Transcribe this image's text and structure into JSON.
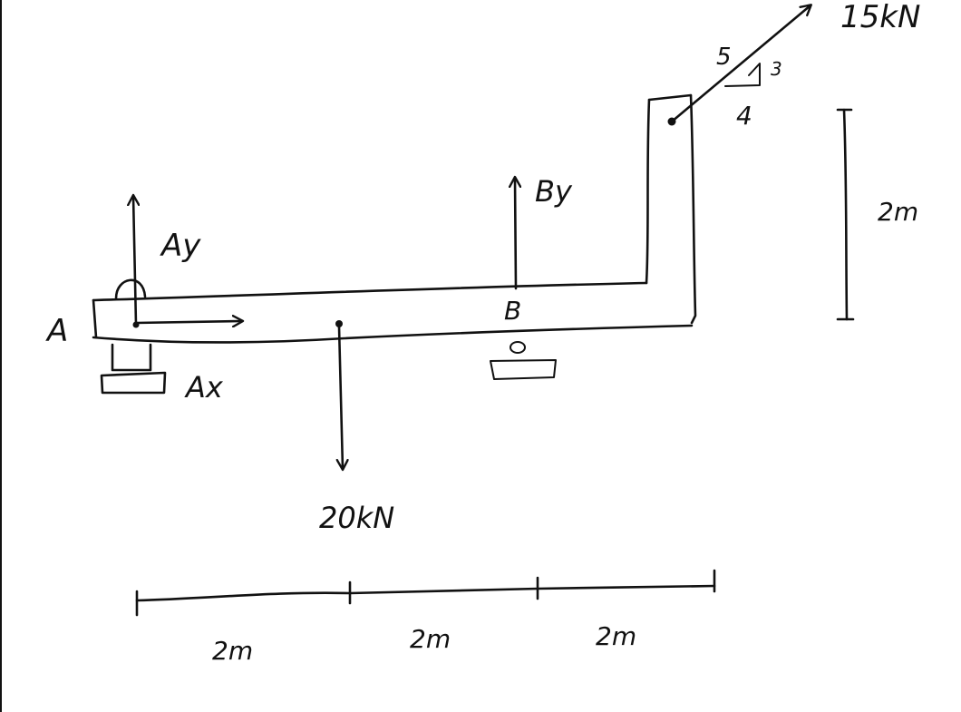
{
  "diagram": {
    "labels": {
      "point_a": "A",
      "point_b": "B",
      "reaction_ay": "Ay",
      "reaction_ax": "Ax",
      "reaction_by": "By",
      "load_20": "20kN",
      "load_15": "15kN",
      "slope_hyp": "5",
      "slope_rise": "3",
      "slope_run": "4",
      "vertical_dim": "2m",
      "dim_1": "2m",
      "dim_2": "2m",
      "dim_3": "2m"
    },
    "colors": {
      "ink": "#111111",
      "background": "#ffffff"
    }
  }
}
